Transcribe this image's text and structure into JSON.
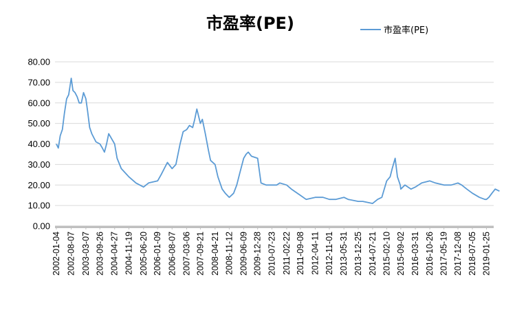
{
  "chart_data": {
    "type": "line",
    "title": "市盈率(PE)",
    "xlabel": "",
    "ylabel": "",
    "ylim": [
      0,
      80
    ],
    "yticks": [
      "0.00",
      "10.00",
      "20.00",
      "30.00",
      "40.00",
      "50.00",
      "60.00",
      "70.00",
      "80.00"
    ],
    "xticks": [
      "2002-01-04",
      "2002-08-07",
      "2003-03-07",
      "2003-09-26",
      "2004-04-27",
      "2004-11-19",
      "2005-06-20",
      "2006-01-09",
      "2006-08-07",
      "2007-03-06",
      "2007-09-21",
      "2008-04-21",
      "2008-11-12",
      "2009-06-09",
      "2009-12-28",
      "2010-07-23",
      "2011-02-22",
      "2011-09-08",
      "2012-04-11",
      "2012-11-01",
      "2013-05-31",
      "2013-12-25",
      "2014-07-21",
      "2015-02-10",
      "2015-09-02",
      "2016-03-31",
      "2016-10-26",
      "2017-05-19",
      "2017-12-08",
      "2018-07-05",
      "2019-01-25"
    ],
    "grid": true,
    "legend": "top-right",
    "colors": {
      "series": "#5b9bd5",
      "grid": "#d9d9d9",
      "axis": "#bfbfbf"
    },
    "series": [
      {
        "name": "市盈率(PE)",
        "x": [
          "2002-01-04",
          "2002-02-01",
          "2002-03-01",
          "2002-04-01",
          "2002-05-01",
          "2002-06-01",
          "2002-07-01",
          "2002-08-07",
          "2002-09-01",
          "2002-10-01",
          "2002-11-01",
          "2002-12-01",
          "2003-01-01",
          "2003-02-01",
          "2003-03-07",
          "2003-04-01",
          "2003-05-01",
          "2003-06-01",
          "2003-07-01",
          "2003-08-01",
          "2003-09-26",
          "2003-11-01",
          "2003-12-01",
          "2004-01-01",
          "2004-02-01",
          "2004-04-27",
          "2004-06-01",
          "2004-08-01",
          "2004-11-19",
          "2005-03-01",
          "2005-06-20",
          "2005-09-01",
          "2006-01-09",
          "2006-03-01",
          "2006-05-01",
          "2006-06-01",
          "2006-08-07",
          "2006-10-01",
          "2006-12-01",
          "2007-01-15",
          "2007-03-06",
          "2007-04-15",
          "2007-06-01",
          "2007-07-01",
          "2007-08-01",
          "2007-09-21",
          "2007-10-20",
          "2007-12-01",
          "2008-01-15",
          "2008-02-15",
          "2008-04-21",
          "2008-06-01",
          "2008-08-01",
          "2008-09-15",
          "2008-11-12",
          "2008-12-15",
          "2009-01-15",
          "2009-03-01",
          "2009-04-15",
          "2009-06-09",
          "2009-07-15",
          "2009-08-15",
          "2009-10-01",
          "2009-12-28",
          "2010-02-15",
          "2010-05-01",
          "2010-07-23",
          "2010-10-01",
          "2010-11-15",
          "2011-02-22",
          "2011-05-01",
          "2011-09-08",
          "2011-12-01",
          "2012-04-11",
          "2012-08-01",
          "2012-11-01",
          "2013-02-01",
          "2013-05-31",
          "2013-08-01",
          "2013-12-25",
          "2014-03-01",
          "2014-07-21",
          "2014-10-01",
          "2014-12-01",
          "2015-02-10",
          "2015-04-01",
          "2015-05-01",
          "2015-06-12",
          "2015-07-15",
          "2015-08-25",
          "2015-09-02",
          "2015-11-01",
          "2016-01-28",
          "2016-03-31",
          "2016-07-01",
          "2016-10-26",
          "2017-01-15",
          "2017-05-19",
          "2017-09-01",
          "2017-12-08",
          "2018-02-01",
          "2018-04-15",
          "2018-07-05",
          "2018-10-15",
          "2019-01-02",
          "2019-01-25",
          "2019-03-01",
          "2019-04-15",
          "2019-06-01",
          "2019-08-01"
        ],
        "values": [
          40,
          38,
          44,
          47,
          55,
          62,
          64,
          72,
          66,
          65,
          63,
          60,
          60,
          65,
          62,
          56,
          48,
          45,
          43,
          41,
          40,
          38,
          36,
          40,
          45,
          40,
          33,
          28,
          24,
          21,
          19,
          21,
          22,
          25,
          29,
          31,
          28,
          30,
          40,
          46,
          47,
          49,
          48,
          52,
          57,
          50,
          52,
          45,
          37,
          32,
          30,
          24,
          18,
          16,
          14,
          15,
          16,
          20,
          26,
          33,
          35,
          36,
          34,
          33,
          21,
          20,
          20,
          20,
          21,
          20,
          18,
          15,
          13,
          14,
          14,
          13,
          13,
          14,
          13,
          12,
          12,
          11,
          13,
          14,
          22,
          24,
          28,
          33,
          24,
          20,
          18,
          20,
          18,
          19,
          21,
          22,
          21,
          20,
          20,
          21,
          20,
          18,
          16,
          14,
          13,
          13,
          14,
          16,
          18,
          17
        ]
      }
    ]
  }
}
